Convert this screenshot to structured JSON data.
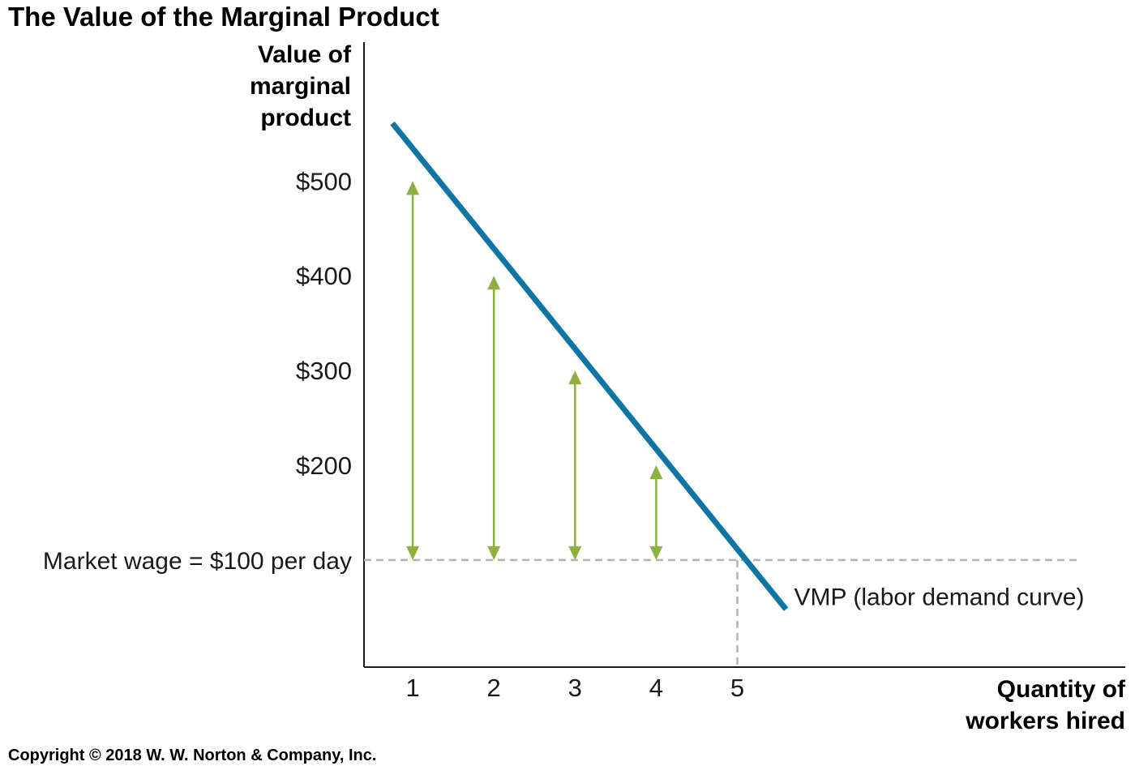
{
  "chart_data": {
    "type": "line",
    "title": "The Value of the Marginal Product",
    "ylabel_lines": [
      "Value of",
      "marginal",
      "product"
    ],
    "xlabel_lines": [
      "Quantity of",
      "workers hired"
    ],
    "x_ticks": [
      {
        "value": 1,
        "label": "1"
      },
      {
        "value": 2,
        "label": "2"
      },
      {
        "value": 3,
        "label": "3"
      },
      {
        "value": 4,
        "label": "4"
      },
      {
        "value": 5,
        "label": "5"
      }
    ],
    "y_ticks": [
      {
        "value": 500,
        "label": "$500"
      },
      {
        "value": 400,
        "label": "$400"
      },
      {
        "value": 300,
        "label": "$300"
      },
      {
        "value": 200,
        "label": "$200"
      },
      {
        "value": 100,
        "label": "Market wage = $100 per day"
      }
    ],
    "xlim": [
      0.4,
      9.9
    ],
    "ylim": [
      -13,
      650
    ],
    "series": [
      {
        "name": "VMP (labor demand curve)",
        "x": [
          0.75,
          5.6
        ],
        "y": [
          561,
          48
        ],
        "color": "#0f75a3"
      }
    ],
    "market_wage": {
      "value": 100,
      "x_extent": 9.2,
      "color": "#b3b3b3"
    },
    "equilibrium_quantity": 5,
    "gap_arrows": [
      {
        "x": 1,
        "from": 100,
        "to": 500
      },
      {
        "x": 2,
        "from": 100,
        "to": 400
      },
      {
        "x": 3,
        "from": 100,
        "to": 300
      },
      {
        "x": 4,
        "from": 100,
        "to": 200
      }
    ],
    "arrow_color": "#8db040",
    "grid": false
  },
  "copyright": "Copyright © 2018 W. W. Norton & Company, Inc."
}
